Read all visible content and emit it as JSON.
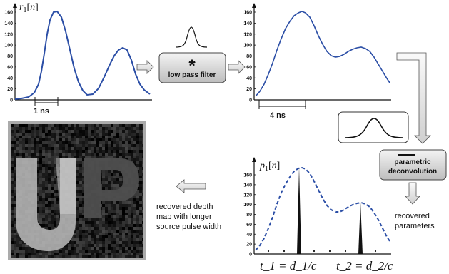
{
  "plots": {
    "tl": {
      "ylabel": "r_1[n]",
      "ticks": [
        "0",
        "20",
        "40",
        "60",
        "80",
        "100",
        "120",
        "140",
        "160"
      ],
      "scale_label": "1 ns"
    },
    "tr": {
      "ticks": [
        "0",
        "20",
        "40",
        "60",
        "80",
        "100",
        "120",
        "140",
        "160"
      ],
      "scale_label": "4 ns"
    },
    "br": {
      "ylabel": "p_1[n]",
      "ticks": [
        "0",
        "20",
        "40",
        "60",
        "80",
        "100",
        "120",
        "140",
        "160"
      ],
      "t1_label": "t_1 = d_1/c",
      "t2_label": "t_2 = d_2/c"
    }
  },
  "lowpass": {
    "symbol": "*",
    "label": "low pass filter"
  },
  "deconv": {
    "line1": "parametric",
    "line2": "deconvolution"
  },
  "recovered_params": {
    "line1": "recovered",
    "line2": "parameters"
  },
  "depth_caption": {
    "line1": "recovered depth",
    "line2": "map with longer",
    "line3": "source pulse width"
  },
  "colors": {
    "curve": "#2b4ea6",
    "box_bg": "#d8d8d8",
    "arrow_fill": "#e8e8e8"
  }
}
